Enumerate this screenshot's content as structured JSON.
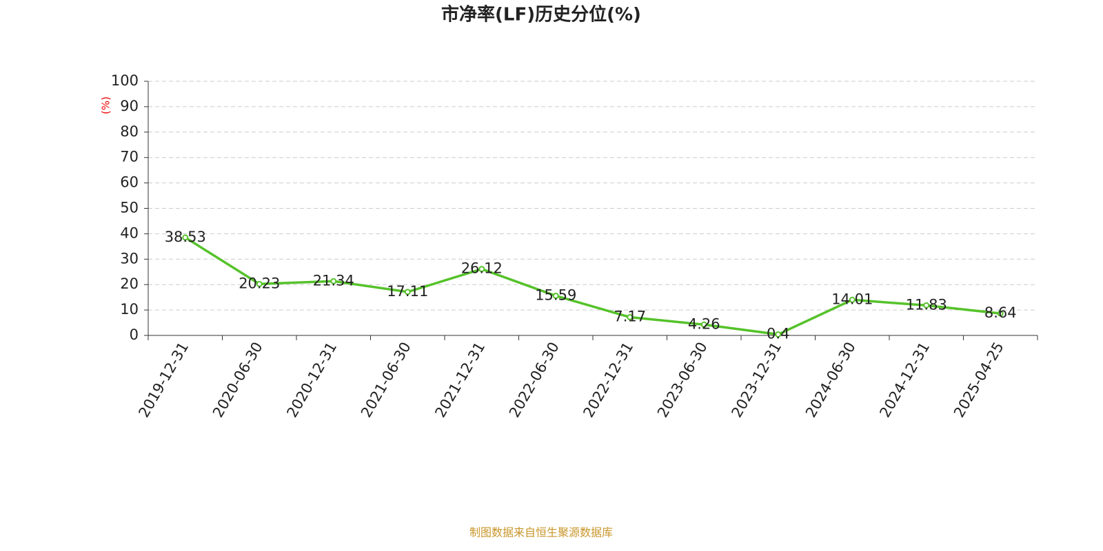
{
  "chart_data": {
    "type": "line",
    "title": "市净率(LF)历史分位(%)",
    "y_label": "(%)",
    "source": "制图数据来自恒生聚源数据库",
    "categories": [
      "2019-12-31",
      "2020-06-30",
      "2020-12-31",
      "2021-06-30",
      "2021-12-31",
      "2022-06-30",
      "2022-12-31",
      "2023-06-30",
      "2023-12-31",
      "2024-06-30",
      "2024-12-31",
      "2025-04-25"
    ],
    "series": [
      {
        "name": "市净率(LF)历史分位",
        "color": "#55c22a",
        "values": [
          38.53,
          20.23,
          21.34,
          17.11,
          26.12,
          15.59,
          7.17,
          4.26,
          0.4,
          14.01,
          11.83,
          8.64
        ]
      }
    ],
    "ylim": [
      0,
      100
    ],
    "yticks": [
      0,
      10,
      20,
      30,
      40,
      50,
      60,
      70,
      80,
      90,
      100
    ],
    "grid": true
  }
}
